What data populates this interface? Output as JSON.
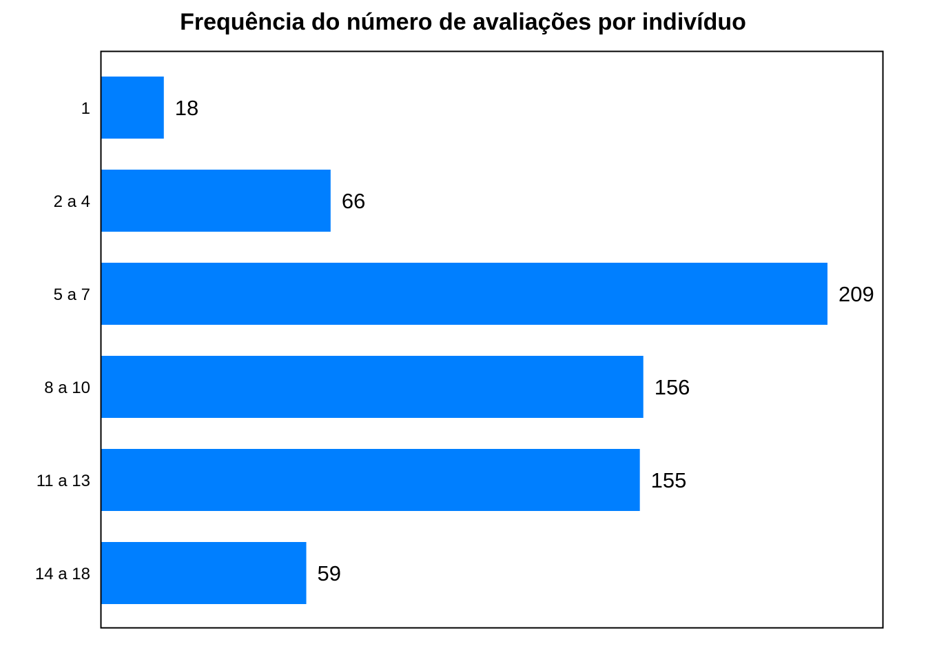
{
  "chart_data": {
    "type": "bar",
    "orientation": "horizontal",
    "title": "Frequência do número de avaliações por indivíduo",
    "categories": [
      "1",
      "2 a 4",
      "5 a 7",
      "8 a 10",
      "11 a 13",
      "14 a 18"
    ],
    "values": [
      18,
      66,
      209,
      156,
      155,
      59
    ],
    "data_labels": [
      "18",
      "66",
      "209",
      "156",
      "155",
      "59"
    ],
    "xlabel": "",
    "ylabel": "",
    "xlim": [
      0,
      225
    ],
    "grid": false,
    "legend": "none",
    "bar_color": "#007FFF"
  }
}
